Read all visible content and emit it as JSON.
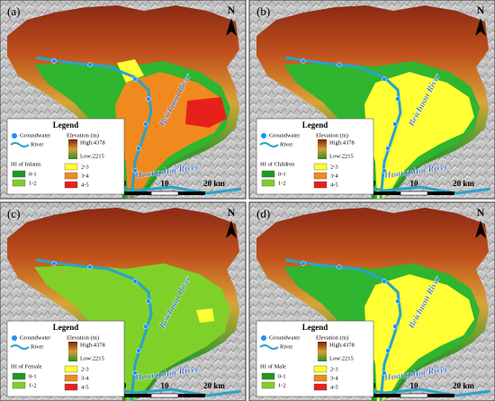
{
  "north": "N",
  "scale": [
    "0",
    "10",
    "20 km"
  ],
  "rivers": [
    "Beichuan River",
    "Huangshui River"
  ],
  "legend": {
    "title": "Legend",
    "groundwater": "Groundwater",
    "elevation": "Elevation (m)",
    "river": "River",
    "high": "High:4378",
    "low": "Low:2215",
    "classes": [
      "0-1",
      "1-2",
      "2-3",
      "3-4",
      "4-5"
    ]
  },
  "panels": [
    {
      "label": "(a)",
      "hi": "HI of Infants"
    },
    {
      "label": "(b)",
      "hi": "HI of Children"
    },
    {
      "label": "(c)",
      "hi": "HI of Female"
    },
    {
      "label": "(d)",
      "hi": "HI of Male"
    }
  ]
}
